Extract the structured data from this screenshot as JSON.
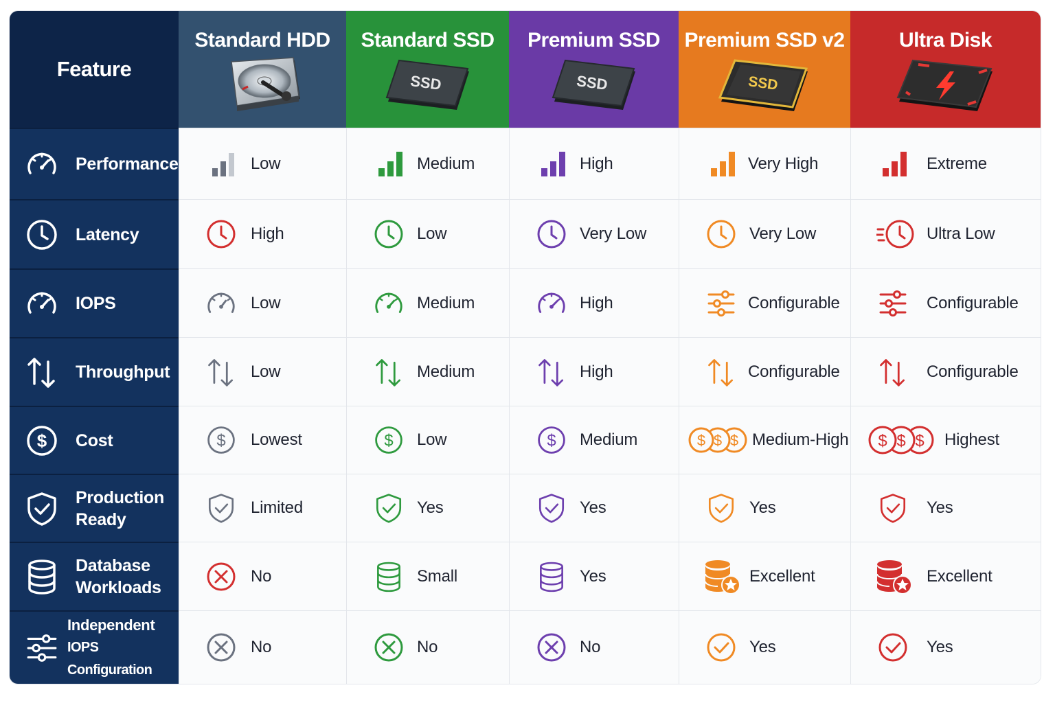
{
  "header": {
    "feature_label": "Feature",
    "tiers": [
      {
        "name": "Standard HDD",
        "color": "#33516f",
        "accent": "#6b7280"
      },
      {
        "name": "Standard SSD",
        "color": "#28923a",
        "accent": "#2e9a3e"
      },
      {
        "name": "Premium SSD",
        "color": "#6a3aa6",
        "accent": "#6d3fae"
      },
      {
        "name": "Premium SSD v2",
        "color": "#e67a1f",
        "accent": "#f08a24"
      },
      {
        "name": "Ultra Disk",
        "color": "#c62a2a",
        "accent": "#d32f2f"
      }
    ],
    "device_labels": {
      "ssd": "SSD"
    }
  },
  "rows": [
    {
      "label": "Performance",
      "icon": "gauge-icon",
      "values": [
        "Low",
        "Medium",
        "High",
        "Very High",
        "Extreme"
      ],
      "cell_icons": [
        "bars-2-icon",
        "bars-3-icon",
        "bars-3-icon",
        "bars-3-icon",
        "bars-3-icon"
      ],
      "bar_levels": [
        2,
        3,
        3,
        3,
        3
      ]
    },
    {
      "label": "Latency",
      "icon": "clock-icon",
      "values": [
        "High",
        "Low",
        "Very Low",
        "Very Low",
        "Ultra Low"
      ],
      "cell_icons": [
        "clock-icon",
        "clock-icon",
        "clock-icon",
        "clock-icon",
        "fast-clock-icon"
      ],
      "cell_colors": [
        "#d32f2f",
        "#2e9a3e",
        "#6d3fae",
        "#f08a24",
        "#d32f2f"
      ]
    },
    {
      "label": "IOPS",
      "icon": "gauge-icon",
      "values": [
        "Low",
        "Medium",
        "High",
        "Configurable",
        "Configurable"
      ],
      "cell_icons": [
        "gauge-icon",
        "gauge-icon",
        "gauge-icon",
        "sliders-icon",
        "sliders-icon"
      ]
    },
    {
      "label": "Throughput",
      "icon": "up-down-arrows-icon",
      "values": [
        "Low",
        "Medium",
        "High",
        "Configurable",
        "Configurable"
      ],
      "cell_icons": [
        "up-down-arrows-icon",
        "up-down-arrows-icon",
        "up-down-arrows-icon",
        "up-down-arrows-icon",
        "up-down-arrows-icon"
      ]
    },
    {
      "label": "Cost",
      "icon": "dollar-icon",
      "values": [
        "Lowest",
        "Low",
        "Medium",
        "Medium-High",
        "Highest"
      ],
      "cell_icons": [
        "dollar-icon",
        "dollar-icon",
        "dollar-icon",
        "dollar-triple-icon",
        "dollar-triple-icon"
      ]
    },
    {
      "label_lines": [
        "Production",
        "Ready"
      ],
      "icon": "shield-check-icon",
      "values": [
        "Limited",
        "Yes",
        "Yes",
        "Yes",
        "Yes"
      ],
      "cell_icons": [
        "shield-check-icon",
        "shield-check-icon",
        "shield-check-icon",
        "shield-check-icon",
        "shield-check-icon"
      ]
    },
    {
      "label_lines": [
        "Database",
        "Workloads"
      ],
      "icon": "database-icon",
      "values": [
        "No",
        "Small",
        "Yes",
        "Excellent",
        "Excellent"
      ],
      "cell_icons": [
        "x-circle-icon",
        "database-icon",
        "database-icon",
        "database-star-icon",
        "database-star-icon"
      ],
      "cell_colors": [
        "#d32f2f",
        "#2e9a3e",
        "#6d3fae",
        "#f08a24",
        "#d32f2f"
      ]
    },
    {
      "label_lines": [
        "Independent",
        "IOPS Configuration"
      ],
      "icon": "sliders-icon",
      "values": [
        "No",
        "No",
        "No",
        "Yes",
        "Yes"
      ],
      "cell_icons": [
        "x-circle-icon",
        "x-circle-icon",
        "x-circle-icon",
        "check-circle-icon",
        "check-circle-icon"
      ]
    }
  ]
}
